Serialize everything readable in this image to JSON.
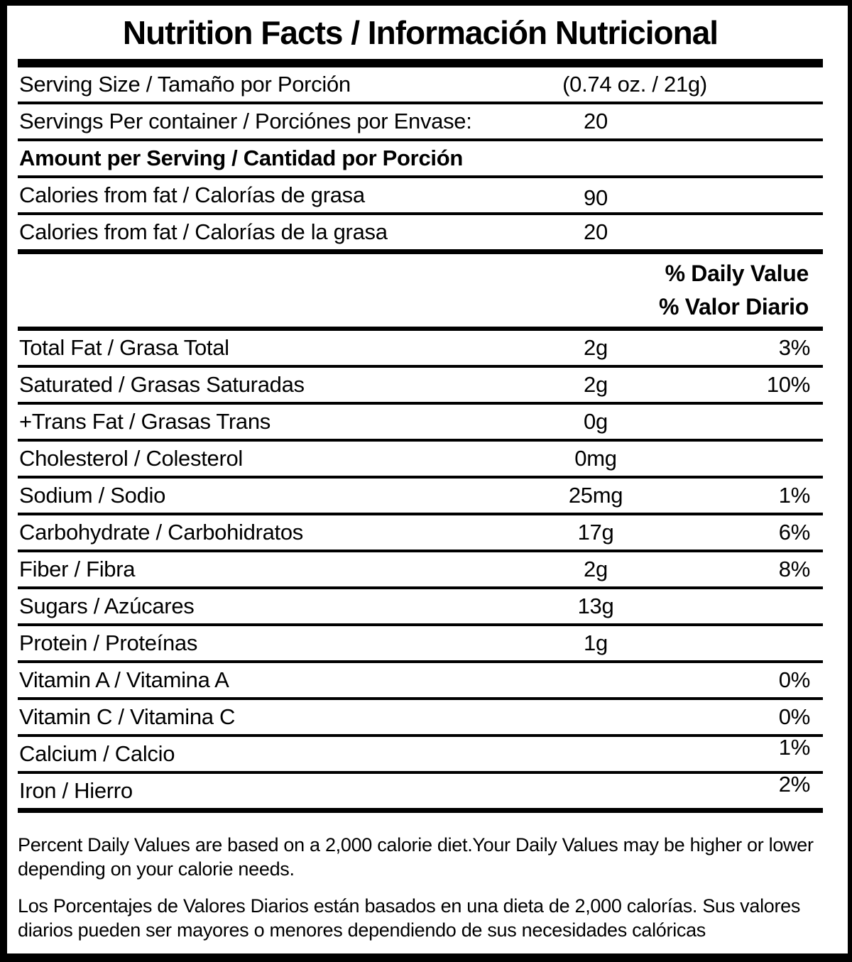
{
  "label": {
    "title": "Nutrition Facts / Información Nutricional",
    "serving_size": {
      "label": "Serving Size / Tamaño por Porción",
      "value": "(0.74 oz. / 21g)"
    },
    "servings_per_container": {
      "label": "Servings Per container / Porciónes por Envase:",
      "value": "20"
    },
    "amount_per_serving_heading": "Amount per Serving / Cantidad por Porción",
    "calorie_rows": [
      {
        "label": "Calories from fat / Calorías de grasa",
        "value": "90"
      },
      {
        "label": "Calories from fat / Calorías de la grasa",
        "value": "20"
      }
    ],
    "daily_value_heading_en": "% Daily Value",
    "daily_value_heading_es": "% Valor Diario",
    "nutrients": [
      {
        "label": "Total Fat / Grasa Total",
        "amount": "2g",
        "dv": "3%"
      },
      {
        "label": "Saturated / Grasas Saturadas",
        "amount": "2g",
        "dv": "10%"
      },
      {
        "label": "+Trans Fat / Grasas Trans",
        "amount": "0g",
        "dv": ""
      },
      {
        "label": "Cholesterol / Colesterol",
        "amount": "0mg",
        "dv": ""
      },
      {
        "label": "Sodium / Sodio",
        "amount": "25mg",
        "dv": "1%"
      },
      {
        "label": "Carbohydrate / Carbohidratos",
        "amount": "17g",
        "dv": "6%"
      },
      {
        "label": "Fiber / Fibra",
        "amount": "2g",
        "dv": "8%"
      },
      {
        "label": "Sugars / Azúcares",
        "amount": "13g",
        "dv": ""
      },
      {
        "label": "Protein / Proteínas",
        "amount": "1g",
        "dv": ""
      },
      {
        "label": "Vitamin A / Vitamina A",
        "amount": "",
        "dv": "0%"
      },
      {
        "label": "Vitamin C / Vitamina C",
        "amount": "",
        "dv": "0%"
      },
      {
        "label": "Calcium / Calcio",
        "amount": "",
        "dv": "1%"
      },
      {
        "label": "Iron / Hierro",
        "amount": "",
        "dv": "2%"
      }
    ],
    "footnotes": [
      "Percent Daily Values are based on a 2,000 calorie diet.Your Daily Values may be higher or lower depending on your calorie needs.",
      "Los Porcentajes de Valores Diarios están basados en una dieta de 2,000 calorías. Sus valores diarios pueden ser mayores o menores dependiendo de sus necesidades calóricas"
    ],
    "colors": {
      "text": "#000000",
      "background": "#ffffff",
      "border": "#000000"
    }
  }
}
